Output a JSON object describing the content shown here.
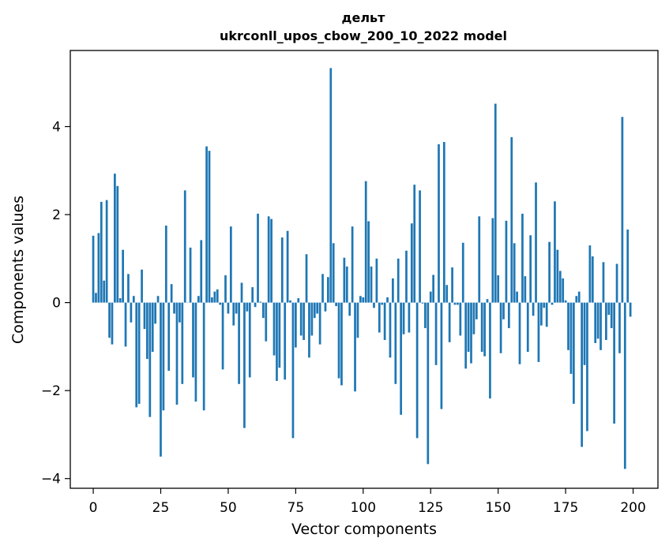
{
  "chart_data": {
    "type": "bar",
    "title_line1": "дельт",
    "title_line2": "ukrconll_upos_cbow_200_10_2022 model",
    "xlabel": "Vector components",
    "ylabel": "Components values",
    "xlim": [
      -8.5,
      209.2
    ],
    "ylim": [
      -4.22,
      5.73
    ],
    "xticks": [
      0,
      25,
      50,
      75,
      100,
      125,
      150,
      175,
      200
    ],
    "xtick_labels": [
      "0",
      "25",
      "50",
      "75",
      "100",
      "125",
      "150",
      "175",
      "200"
    ],
    "yticks": [
      -4,
      -2,
      0,
      2,
      4
    ],
    "ytick_labels": [
      "−4",
      "−2",
      "0",
      "2",
      "4"
    ],
    "grid": false,
    "bar_color": "#1f77b4",
    "x": [
      0,
      1,
      2,
      3,
      4,
      5,
      6,
      7,
      8,
      9,
      10,
      11,
      12,
      13,
      14,
      15,
      16,
      17,
      18,
      19,
      20,
      21,
      22,
      23,
      24,
      25,
      26,
      27,
      28,
      29,
      30,
      31,
      32,
      33,
      34,
      35,
      36,
      37,
      38,
      39,
      40,
      41,
      42,
      43,
      44,
      45,
      46,
      47,
      48,
      49,
      50,
      51,
      52,
      53,
      54,
      55,
      56,
      57,
      58,
      59,
      60,
      61,
      62,
      63,
      64,
      65,
      66,
      67,
      68,
      69,
      70,
      71,
      72,
      73,
      74,
      75,
      76,
      77,
      78,
      79,
      80,
      81,
      82,
      83,
      84,
      85,
      86,
      87,
      88,
      89,
      90,
      91,
      92,
      93,
      94,
      95,
      96,
      97,
      98,
      99,
      100,
      101,
      102,
      103,
      104,
      105,
      106,
      107,
      108,
      109,
      110,
      111,
      112,
      113,
      114,
      115,
      116,
      117,
      118,
      119,
      120,
      121,
      122,
      123,
      124,
      125,
      126,
      127,
      128,
      129,
      130,
      131,
      132,
      133,
      134,
      135,
      136,
      137,
      138,
      139,
      140,
      141,
      142,
      143,
      144,
      145,
      146,
      147,
      148,
      149,
      150,
      151,
      152,
      153,
      154,
      155,
      156,
      157,
      158,
      159,
      160,
      161,
      162,
      163,
      164,
      165,
      166,
      167,
      168,
      169,
      170,
      171,
      172,
      173,
      174,
      175,
      176,
      177,
      178,
      179,
      180,
      181,
      182,
      183,
      184,
      185,
      186,
      187,
      188,
      189,
      190,
      191,
      192,
      193,
      194,
      195,
      196,
      197,
      198,
      199
    ],
    "values": [
      1.52,
      0.22,
      1.58,
      2.29,
      0.5,
      2.33,
      -0.8,
      -0.95,
      2.93,
      2.65,
      0.1,
      1.2,
      -1.0,
      0.65,
      -0.45,
      0.15,
      -2.38,
      -2.3,
      0.75,
      -0.6,
      -1.28,
      -2.6,
      -1.12,
      -0.48,
      0.15,
      -3.5,
      -2.45,
      1.75,
      -1.55,
      0.42,
      -0.25,
      -2.32,
      -0.45,
      -1.85,
      2.55,
      0.0,
      1.25,
      -1.7,
      -2.25,
      0.15,
      1.42,
      -2.45,
      3.55,
      3.45,
      0.12,
      0.25,
      0.3,
      -0.05,
      -1.52,
      0.62,
      -0.25,
      1.73,
      -0.52,
      -0.25,
      -1.85,
      0.45,
      -2.85,
      -0.2,
      -1.7,
      0.35,
      -0.1,
      2.02,
      0.02,
      -0.35,
      -0.88,
      1.96,
      1.9,
      -1.2,
      -1.78,
      -1.48,
      1.48,
      -1.75,
      1.63,
      0.05,
      -3.08,
      -1.02,
      0.1,
      -0.75,
      -0.85,
      1.1,
      -1.25,
      -0.75,
      -0.35,
      -0.25,
      -0.95,
      0.65,
      -0.2,
      0.58,
      5.33,
      1.35,
      -0.08,
      -1.72,
      -1.88,
      1.02,
      0.82,
      -0.3,
      1.73,
      -2.02,
      -0.8,
      0.15,
      0.12,
      2.76,
      1.85,
      0.82,
      -0.12,
      1.0,
      -0.68,
      -0.05,
      -0.85,
      0.12,
      -1.25,
      0.55,
      -1.85,
      1.0,
      -2.55,
      -0.72,
      1.18,
      -0.68,
      1.8,
      2.68,
      -3.08,
      2.55,
      -0.02,
      -0.58,
      -3.67,
      0.25,
      0.63,
      -1.42,
      3.6,
      -2.42,
      3.65,
      0.4,
      -0.9,
      0.8,
      -0.05,
      -0.05,
      -0.75,
      1.36,
      -1.5,
      -1.12,
      -1.38,
      -0.72,
      -0.38,
      1.96,
      -1.12,
      -1.22,
      0.08,
      -2.18,
      1.92,
      4.52,
      0.62,
      -1.15,
      -0.38,
      1.86,
      -0.58,
      3.76,
      1.35,
      0.25,
      -1.4,
      2.02,
      0.6,
      -1.12,
      1.53,
      -0.3,
      2.73,
      -1.35,
      -0.52,
      -0.12,
      -0.55,
      1.38,
      -0.05,
      2.3,
      1.2,
      0.72,
      0.55,
      0.05,
      -1.08,
      -1.62,
      -2.3,
      0.15,
      0.25,
      -3.28,
      -1.42,
      -2.92,
      1.3,
      1.05,
      -0.92,
      -0.82,
      -1.08,
      0.92,
      -0.85,
      -0.28,
      -0.58,
      -2.75,
      0.88,
      -1.15,
      4.22,
      -3.78,
      1.66,
      -0.32
    ]
  }
}
